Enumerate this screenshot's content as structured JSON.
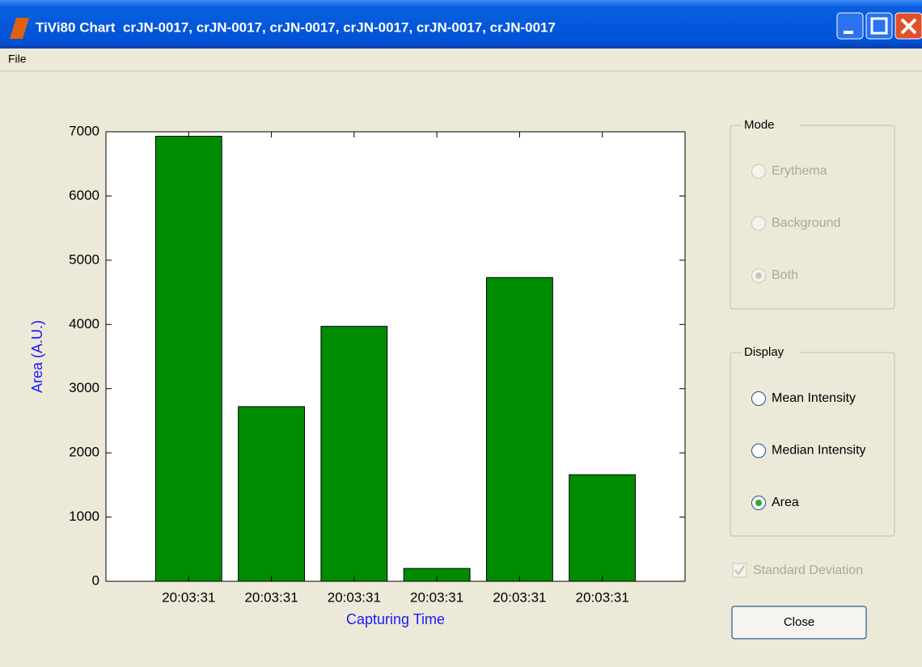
{
  "window": {
    "title": "TiVi80 Chart  crJN-0017, crJN-0017, crJN-0017, crJN-0017, crJN-0017, crJN-0017",
    "menu": [
      "File"
    ]
  },
  "chart_data": {
    "type": "bar",
    "categories": [
      "20:03:31",
      "20:03:31",
      "20:03:31",
      "20:03:31",
      "20:03:31",
      "20:03:31"
    ],
    "values": [
      6930,
      2720,
      3970,
      200,
      4730,
      1660
    ],
    "color": "#008c00",
    "xlabel": "Capturing Time",
    "ylabel": "Area (A.U.)",
    "label_color": "#1a1aff",
    "ylim": [
      0,
      7000
    ],
    "yticks": [
      0,
      1000,
      2000,
      3000,
      4000,
      5000,
      6000,
      7000
    ]
  },
  "mode": {
    "title": "Mode",
    "options": [
      "Erythema",
      "Background",
      "Both"
    ],
    "selected": 2,
    "enabled": false
  },
  "display": {
    "title": "Display",
    "options": [
      "Mean Intensity",
      "Median Intensity",
      "Area"
    ],
    "selected": 2,
    "enabled": true
  },
  "checkbox": {
    "label": "Standard Deviation",
    "checked": true,
    "enabled": false
  },
  "button": {
    "label": "Close"
  }
}
